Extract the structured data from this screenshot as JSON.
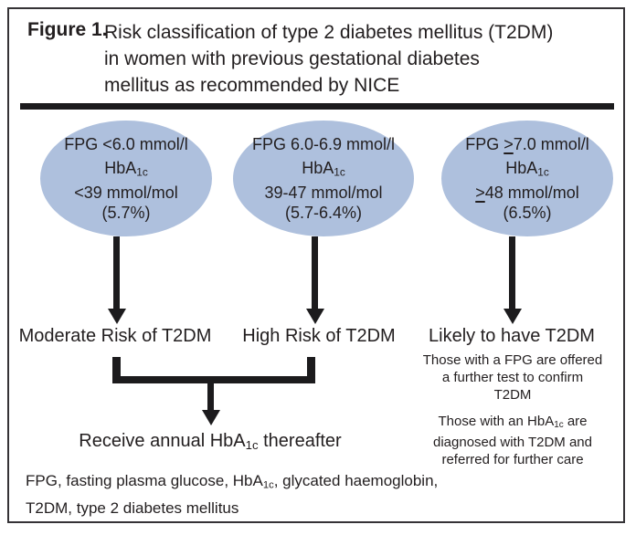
{
  "figure": {
    "label": "Figure 1.",
    "title_lines": [
      "Risk classification of type 2 diabetes mellitus (T2DM)",
      "in women with previous gestational diabetes",
      "mellitus as recommended by NICE"
    ]
  },
  "columns": {
    "col1": {
      "fpg": "FPG <6.0 mmol/l",
      "hba_base": "HbA",
      "hba_sub": "1c",
      "range": "<39 mmol/mol",
      "percent": "(5.7%)",
      "outcome": "Moderate Risk of T2DM"
    },
    "col2": {
      "fpg": "FPG 6.0-6.9 mmol/l",
      "hba_base": "HbA",
      "hba_sub": "1c",
      "range": "39-47 mmol/mol",
      "percent": "(5.7-6.4%)",
      "outcome": "High Risk of T2DM"
    },
    "col3": {
      "fpg_prefix": "FPG ",
      "fpg_geq": ">",
      "fpg_rest": "7.0 mmol/l",
      "hba_base": "HbA",
      "hba_sub": "1c",
      "range_geq": ">",
      "range_rest": "48 mmol/mol",
      "percent": "(6.5%)",
      "outcome": "Likely to have T2DM",
      "note1_lines": [
        "Those with a FPG are offered",
        "a further test to confirm",
        "T2DM"
      ],
      "note2_line1_base": "Those with an HbA",
      "note2_line1_sub": "1c",
      "note2_line1_rest": " are",
      "note2_line2": "diagnosed with T2DM and",
      "note2_line3": "referred for further care"
    }
  },
  "merge_label": {
    "pre": "Receive annual HbA",
    "sub": "1c",
    "post": " thereafter"
  },
  "footnote": {
    "line1_pre": "FPG, fasting plasma glucose, HbA",
    "line1_sub": "1c",
    "line1_post": ", glycated haemoglobin,",
    "line2": "T2DM, type 2 diabetes mellitus"
  },
  "colors": {
    "ellipse_fill": "#aec0dd",
    "ink": "#221e1f"
  }
}
